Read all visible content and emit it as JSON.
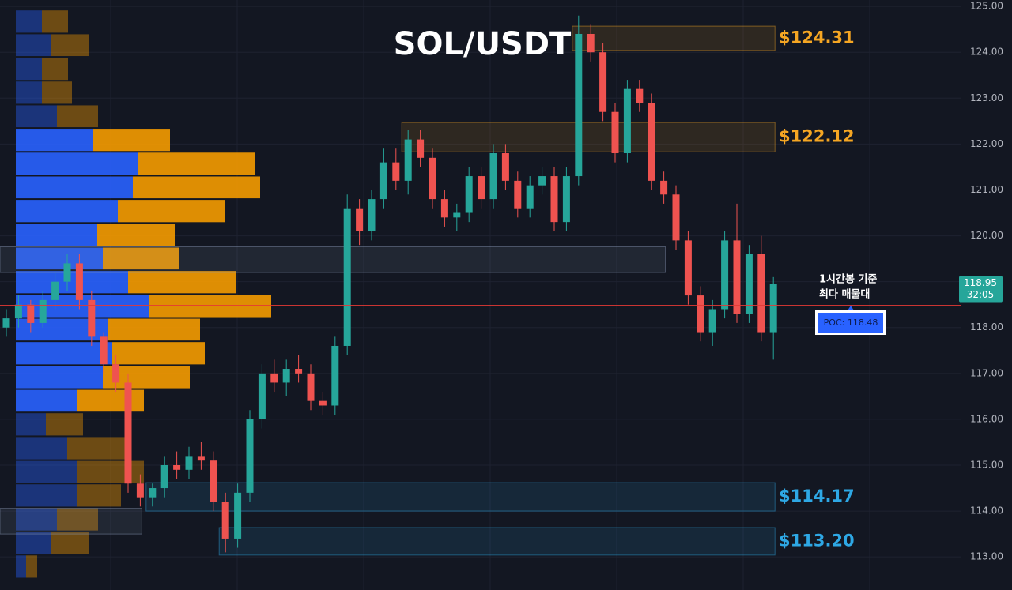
{
  "chart_data": {
    "type": "candlestick",
    "title": "SOL/USDT",
    "ylim": [
      112.28,
      125.14
    ],
    "yticks": [
      {
        "value": 113,
        "label": "113.00"
      },
      {
        "value": 114,
        "label": "114.00"
      },
      {
        "value": 115,
        "label": "115.00"
      },
      {
        "value": 116,
        "label": "116.00"
      },
      {
        "value": 117,
        "label": "117.00"
      },
      {
        "value": 118,
        "label": "118.00"
      },
      {
        "value": 119,
        "label": "119.00"
      },
      {
        "value": 120,
        "label": "120.00"
      },
      {
        "value": 121,
        "label": "121.00"
      },
      {
        "value": 122,
        "label": "122.00"
      },
      {
        "value": 123,
        "label": "123.00"
      },
      {
        "value": 124,
        "label": "124.00"
      },
      {
        "value": 125,
        "label": "125.00"
      }
    ],
    "grid": true,
    "up_color": "#26a69a",
    "down_color": "#ef5350",
    "open": [
      118.0,
      118.2,
      118.5,
      118.1,
      118.6,
      119.0,
      119.4,
      118.6,
      117.8,
      117.2,
      116.8,
      114.6,
      114.3,
      114.5,
      115.0,
      114.9,
      115.2,
      115.1,
      114.2,
      113.4,
      114.4,
      116.0,
      117.0,
      116.8,
      117.1,
      117.0,
      116.4,
      116.3,
      117.6,
      120.6,
      120.1,
      120.8,
      121.6,
      121.2,
      122.1,
      121.7,
      120.8,
      120.4,
      120.5,
      121.3,
      120.8,
      121.8,
      121.2,
      120.6,
      121.1,
      121.3,
      120.3,
      121.3,
      124.4,
      124.0,
      122.7,
      121.8,
      123.2,
      122.9,
      121.2,
      120.9,
      119.9,
      118.7,
      117.9,
      118.4,
      119.9,
      118.3,
      119.6,
      117.9
    ],
    "high": [
      118.4,
      118.7,
      118.6,
      118.8,
      119.2,
      119.6,
      119.6,
      118.8,
      117.9,
      117.4,
      117.0,
      114.8,
      114.6,
      115.2,
      115.3,
      115.4,
      115.5,
      115.3,
      114.4,
      114.6,
      116.2,
      117.2,
      117.3,
      117.3,
      117.4,
      117.2,
      116.6,
      117.8,
      120.9,
      120.8,
      121.0,
      121.9,
      121.9,
      122.3,
      122.3,
      121.9,
      121.0,
      120.7,
      121.5,
      121.5,
      122.0,
      122.0,
      121.4,
      121.3,
      121.5,
      121.5,
      121.5,
      124.8,
      124.6,
      124.2,
      122.9,
      123.4,
      123.4,
      123.1,
      121.4,
      121.1,
      120.1,
      118.9,
      118.6,
      120.1,
      120.7,
      119.8,
      120.0,
      119.1
    ],
    "low": [
      117.8,
      118.0,
      117.9,
      118.0,
      118.4,
      118.8,
      118.4,
      117.6,
      117.0,
      116.6,
      114.4,
      114.1,
      114.1,
      114.3,
      114.7,
      114.7,
      114.9,
      114.0,
      113.1,
      113.2,
      114.2,
      115.8,
      116.6,
      116.5,
      116.8,
      116.2,
      116.1,
      116.1,
      117.4,
      119.8,
      119.9,
      120.6,
      121.0,
      120.9,
      121.5,
      120.6,
      120.2,
      120.1,
      120.3,
      120.6,
      120.6,
      121.0,
      120.4,
      120.4,
      120.9,
      120.1,
      120.1,
      121.1,
      123.8,
      122.5,
      121.6,
      121.6,
      122.7,
      121.0,
      120.7,
      119.7,
      118.5,
      117.7,
      117.6,
      118.2,
      118.1,
      118.1,
      117.7,
      117.3
    ],
    "close": [
      118.2,
      118.5,
      118.1,
      118.6,
      119.0,
      119.4,
      118.6,
      117.8,
      117.2,
      116.8,
      114.6,
      114.3,
      114.5,
      115.0,
      114.9,
      115.2,
      115.1,
      114.2,
      113.4,
      114.4,
      116.0,
      117.0,
      116.8,
      117.1,
      117.0,
      116.4,
      116.3,
      117.6,
      120.6,
      120.1,
      120.8,
      121.6,
      121.2,
      122.1,
      121.7,
      120.8,
      120.4,
      120.5,
      121.3,
      120.8,
      121.8,
      121.2,
      120.6,
      121.1,
      121.3,
      120.3,
      121.3,
      124.4,
      124.0,
      122.7,
      121.8,
      123.2,
      122.9,
      121.2,
      120.9,
      119.9,
      118.7,
      117.9,
      118.4,
      119.9,
      118.3,
      119.6,
      117.9,
      118.95
    ],
    "profile": {
      "bins": [
        124.93,
        124.41,
        123.9,
        123.38,
        122.86,
        122.35,
        121.83,
        121.31,
        120.8,
        120.28,
        119.76,
        119.25,
        118.73,
        118.21,
        117.7,
        117.18,
        116.66,
        116.15,
        115.63,
        115.11,
        114.6,
        114.08,
        113.56,
        113.05,
        112.53
      ],
      "buy": [
        33,
        45,
        33,
        33,
        52,
        98,
        155,
        148,
        129,
        103,
        110,
        142,
        168,
        117,
        122,
        110,
        78,
        38,
        65,
        78,
        78,
        52,
        45,
        13
      ],
      "sell": [
        33,
        47,
        33,
        38,
        52,
        97,
        148,
        161,
        136,
        98,
        97,
        136,
        155,
        116,
        117,
        110,
        84,
        47,
        78,
        84,
        55,
        52,
        47,
        14
      ],
      "buy_color": "#2962ff",
      "sell_color": "#f59b00",
      "value_area": [
        116.15,
        122.35
      ]
    },
    "zones": [
      {
        "label": "$124.31",
        "low": 124.04,
        "high": 124.57,
        "start_index": 47,
        "end_index": 63,
        "color": "#f5a623"
      },
      {
        "label": "$122.12",
        "low": 121.83,
        "high": 122.47,
        "start_index": 33,
        "end_index": 63,
        "color": "#f5a623"
      },
      {
        "low": 119.2,
        "high": 119.76,
        "start_index": 0,
        "end_index": 54,
        "color": "#8a9ab5"
      },
      {
        "label": "$114.17",
        "low": 114.0,
        "high": 114.62,
        "start_index": 12,
        "end_index": 63,
        "color": "#2ea8e5"
      },
      {
        "low": 113.5,
        "high": 114.06,
        "start_index": 0,
        "end_index": 11,
        "color": "#8a9ab5"
      },
      {
        "label": "$113.20",
        "low": 113.04,
        "high": 113.64,
        "start_index": 18,
        "end_index": 63,
        "color": "#2ea8e5"
      }
    ],
    "poc": {
      "value": 118.48,
      "label": "POC: 118.48",
      "color": "#e53935"
    },
    "annotation": [
      "1시간봉 기준",
      "최다 매물대"
    ],
    "last_price": 118.95,
    "countdown": "32:05"
  }
}
